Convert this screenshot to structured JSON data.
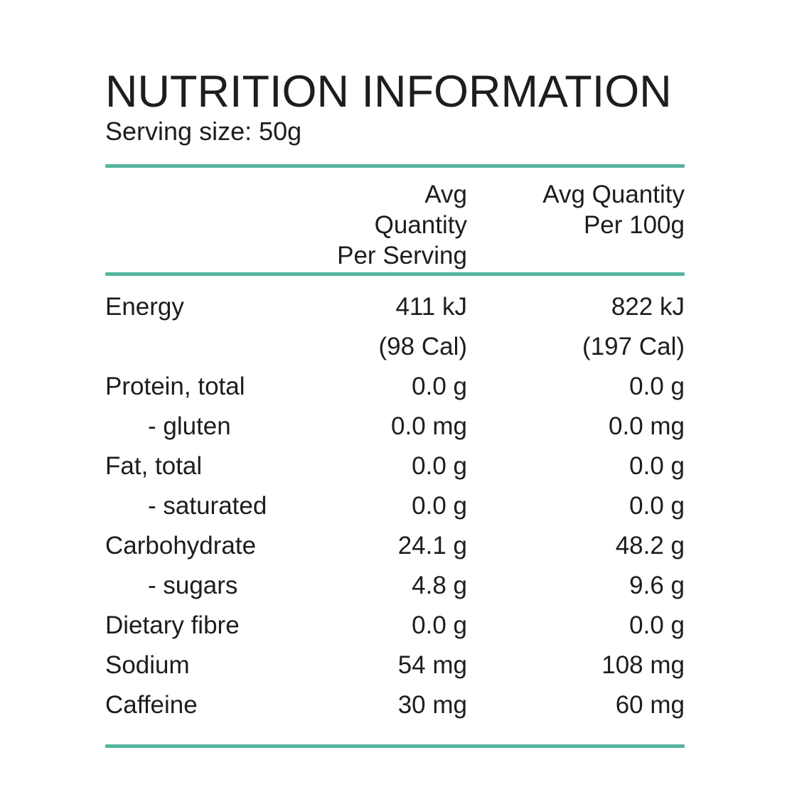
{
  "page": {
    "title": "NUTRITION INFORMATION",
    "serving_size": "Serving size: 50g"
  },
  "theme": {
    "accent_color": "#54b69e",
    "text_color": "#1d1d1d",
    "background_color": "#ffffff"
  },
  "table": {
    "columns": [
      {
        "line1": "Avg Quantity",
        "line2": "Per Serving"
      },
      {
        "line1": "Avg Quantity",
        "line2": "Per 100g"
      }
    ],
    "rows": [
      {
        "label": "Energy",
        "per_serving": "411 kJ",
        "per_100g": "822 kJ"
      },
      {
        "label": "",
        "per_serving": "(98 Cal)",
        "per_100g": "(197 Cal)"
      },
      {
        "label": "Protein, total",
        "per_serving": "0.0 g",
        "per_100g": "0.0 g"
      },
      {
        "label": "- gluten",
        "per_serving": "0.0 mg",
        "per_100g": "0.0 mg",
        "indent": true
      },
      {
        "label": "Fat, total",
        "per_serving": "0.0 g",
        "per_100g": "0.0 g"
      },
      {
        "label": "- saturated",
        "per_serving": "0.0 g",
        "per_100g": "0.0 g",
        "indent": true
      },
      {
        "label": "Carbohydrate",
        "per_serving": "24.1 g",
        "per_100g": "48.2 g"
      },
      {
        "label": "- sugars",
        "per_serving": "4.8 g",
        "per_100g": "9.6 g",
        "indent": true
      },
      {
        "label": "Dietary fibre",
        "per_serving": "0.0 g",
        "per_100g": "0.0 g"
      },
      {
        "label": "Sodium",
        "per_serving": "54 mg",
        "per_100g": "108 mg"
      },
      {
        "label": "Caffeine",
        "per_serving": "30 mg",
        "per_100g": "60 mg"
      }
    ]
  }
}
